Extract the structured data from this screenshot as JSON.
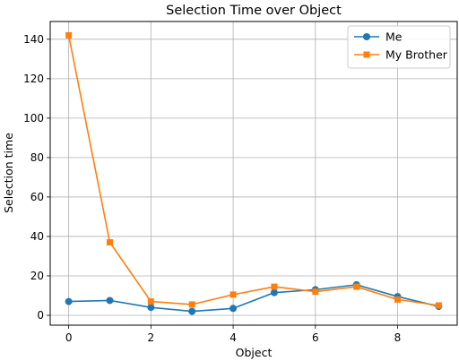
{
  "chart_data": {
    "type": "line",
    "title": "Selection Time over Object",
    "xlabel": "Object",
    "ylabel": "Selection time",
    "x": [
      0,
      1,
      2,
      3,
      4,
      5,
      6,
      7,
      8,
      9
    ],
    "xlim": [
      -0.45,
      9.45
    ],
    "ylim": [
      -5,
      149
    ],
    "xticks": [
      0,
      2,
      4,
      6,
      8
    ],
    "yticks": [
      0,
      20,
      40,
      60,
      80,
      100,
      120,
      140
    ],
    "grid": true,
    "legend_position": "top-right",
    "series": [
      {
        "name": "Me",
        "marker": "circle",
        "color": "#1f77b4",
        "values": [
          7,
          7.5,
          4,
          2,
          3.5,
          11.5,
          13,
          15.5,
          9.5,
          4.5
        ]
      },
      {
        "name": "My Brother",
        "marker": "square",
        "color": "#ff7f0e",
        "values": [
          142,
          37,
          7,
          5.5,
          10.5,
          14.5,
          12,
          14.5,
          8,
          5
        ]
      }
    ]
  }
}
